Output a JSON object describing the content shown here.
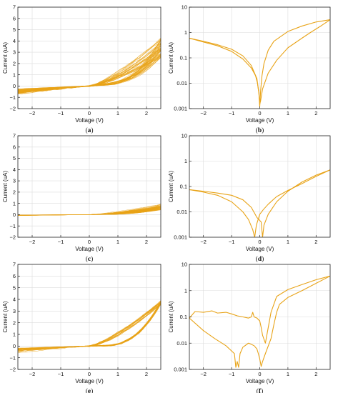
{
  "figure": {
    "series_color": "#E8A317",
    "grid_color": "#dcdcdc"
  },
  "chart_data": [
    {
      "type": "line",
      "panel_label": "(a)",
      "yscale": "linear",
      "xlim": [
        -2.5,
        2.5
      ],
      "ylim": [
        -2,
        7
      ],
      "xticks": [
        -2,
        -1,
        0,
        1,
        2
      ],
      "yticks": [
        -2,
        -1,
        0,
        1,
        2,
        3,
        4,
        5,
        6,
        7
      ],
      "xtick_labels": [
        "−2",
        "−1",
        "0",
        "1",
        "2"
      ],
      "ytick_labels": [
        "−2",
        "−1",
        "0",
        "1",
        "2",
        "3",
        "4",
        "5",
        "6",
        "7"
      ],
      "xlabel": "Voltage (V)",
      "ylabel": "Current (uA)",
      "grid": true,
      "bundle": {
        "count": 28,
        "i_max_range": [
          2.2,
          4.3
        ],
        "low_branch_range": [
          0.3,
          1.0
        ],
        "i_min_range": [
          -0.3,
          -0.8
        ]
      }
    },
    {
      "type": "line",
      "panel_label": "(b)",
      "yscale": "log",
      "xlim": [
        -2.5,
        2.5
      ],
      "ylim": [
        0.001,
        10
      ],
      "xticks": [
        -2,
        -1,
        0,
        1,
        2
      ],
      "yticks": [
        0.001,
        0.01,
        0.1,
        1,
        10
      ],
      "xtick_labels": [
        "−2",
        "−1",
        "0",
        "1",
        "2"
      ],
      "ytick_labels": [
        "0.001",
        "0.01",
        "0.1",
        "1",
        "10"
      ],
      "xlabel": "Voltage (V)",
      "ylabel": "Current (uA)",
      "grid": true,
      "series": [
        {
          "x": [
            -2.5,
            -2.0,
            -1.5,
            -1.0,
            -0.6,
            -0.3,
            -0.15,
            -0.08,
            -0.03,
            0.0,
            0.03,
            0.08,
            0.15,
            0.3,
            0.5,
            1.0,
            1.5,
            2.0,
            2.5
          ],
          "y": [
            0.6,
            0.42,
            0.3,
            0.18,
            0.09,
            0.04,
            0.02,
            0.01,
            0.004,
            0.0012,
            0.005,
            0.02,
            0.06,
            0.2,
            0.45,
            1.1,
            1.8,
            2.6,
            3.2
          ]
        },
        {
          "x": [
            2.5,
            2.2,
            1.8,
            1.5,
            1.0,
            0.6,
            0.3,
            0.1,
            0.03,
            0.0,
            -0.03,
            -0.1,
            -0.3,
            -0.6,
            -1.0,
            -1.5,
            -2.0,
            -2.5
          ],
          "y": [
            3.2,
            1.9,
            1.0,
            0.6,
            0.25,
            0.08,
            0.025,
            0.006,
            0.002,
            0.0015,
            0.004,
            0.015,
            0.05,
            0.12,
            0.22,
            0.33,
            0.45,
            0.6
          ]
        }
      ]
    },
    {
      "type": "line",
      "panel_label": "(c)",
      "yscale": "linear",
      "xlim": [
        -2.5,
        2.5
      ],
      "ylim": [
        -2,
        7
      ],
      "xticks": [
        -2,
        -1,
        0,
        1,
        2
      ],
      "yticks": [
        -2,
        -1,
        0,
        1,
        2,
        3,
        4,
        5,
        6,
        7
      ],
      "xtick_labels": [
        "−2",
        "−1",
        "0",
        "1",
        "2"
      ],
      "ytick_labels": [
        "−2",
        "−1",
        "0",
        "1",
        "2",
        "3",
        "4",
        "5",
        "6",
        "7"
      ],
      "xlabel": "Voltage (V)",
      "ylabel": "Current (uA)",
      "grid": true,
      "bundle": {
        "count": 25,
        "i_max_range": [
          0.3,
          1.0
        ],
        "low_branch_range": [
          0.05,
          0.3
        ],
        "i_min_range": [
          -0.03,
          -0.08
        ]
      }
    },
    {
      "type": "line",
      "panel_label": "(d)",
      "yscale": "log",
      "xlim": [
        -2.5,
        2.5
      ],
      "ylim": [
        0.001,
        10
      ],
      "xticks": [
        -2,
        -1,
        0,
        1,
        2
      ],
      "yticks": [
        0.001,
        0.01,
        0.1,
        1,
        10
      ],
      "xtick_labels": [
        "−2",
        "−1",
        "0",
        "1",
        "2"
      ],
      "ytick_labels": [
        "0.001",
        "0.01",
        "0.1",
        "1",
        "10"
      ],
      "xlabel": "Voltage (V)",
      "ylabel": "Current (uA)",
      "grid": true,
      "series": [
        {
          "x": [
            -2.5,
            -2.0,
            -1.5,
            -1.0,
            -0.6,
            -0.4,
            -0.25,
            -0.18,
            -0.12,
            0.0,
            0.12,
            0.3,
            0.6,
            1.0,
            1.5,
            2.0,
            2.5
          ],
          "y": [
            0.075,
            0.06,
            0.045,
            0.025,
            0.01,
            0.005,
            0.002,
            0.001,
            0.003,
            0.008,
            0.012,
            0.02,
            0.04,
            0.07,
            0.13,
            0.25,
            0.45
          ]
        },
        {
          "x": [
            2.5,
            2.0,
            1.5,
            1.0,
            0.6,
            0.3,
            0.15,
            0.1,
            0.05,
            -0.1,
            -0.3,
            -0.6,
            -1.0,
            -1.5,
            -2.0,
            -2.5
          ],
          "y": [
            0.45,
            0.28,
            0.15,
            0.065,
            0.025,
            0.008,
            0.003,
            0.001,
            0.004,
            0.006,
            0.015,
            0.03,
            0.045,
            0.055,
            0.065,
            0.075
          ]
        }
      ]
    },
    {
      "type": "line",
      "panel_label": "(e)",
      "yscale": "linear",
      "xlim": [
        -2.5,
        2.5
      ],
      "ylim": [
        -2,
        7
      ],
      "xticks": [
        -2,
        -1,
        0,
        1,
        2
      ],
      "yticks": [
        -2,
        -1,
        0,
        1,
        2,
        3,
        4,
        5,
        6,
        7
      ],
      "xtick_labels": [
        "−2",
        "−1",
        "0",
        "1",
        "2"
      ],
      "ytick_labels": [
        "−2",
        "−1",
        "0",
        "1",
        "2",
        "3",
        "4",
        "5",
        "6",
        "7"
      ],
      "xlabel": "Voltage (V)",
      "ylabel": "Current (uA)",
      "grid": true,
      "bundle": {
        "count": 20,
        "i_max_range": [
          3.5,
          3.9
        ],
        "low_branch_range": [
          0.0,
          0.3
        ],
        "i_min_range": [
          -0.2,
          -0.6
        ]
      }
    },
    {
      "type": "line",
      "panel_label": "(f)",
      "yscale": "log",
      "xlim": [
        -2.5,
        2.5
      ],
      "ylim": [
        0.001,
        10
      ],
      "xticks": [
        -2,
        -1,
        0,
        1,
        2
      ],
      "yticks": [
        0.001,
        0.01,
        0.1,
        1,
        10
      ],
      "xtick_labels": [
        "−2",
        "−1",
        "0",
        "1",
        "2"
      ],
      "ytick_labels": [
        "0.001",
        "0.01",
        "0.1",
        "1",
        "10"
      ],
      "xlabel": "Voltage (V)",
      "ylabel": "Current (uA)",
      "grid": true,
      "series": [
        {
          "x": [
            -2.5,
            -2.3,
            -2.0,
            -1.7,
            -1.5,
            -1.2,
            -1.0,
            -0.8,
            -0.6,
            -0.4,
            -0.3,
            -0.25,
            -0.2,
            -0.1,
            0.0,
            0.05,
            0.1,
            0.2,
            0.4,
            0.6,
            1.0,
            1.5,
            2.0,
            2.5
          ],
          "y": [
            0.09,
            0.16,
            0.15,
            0.17,
            0.14,
            0.15,
            0.13,
            0.11,
            0.1,
            0.09,
            0.1,
            0.15,
            0.1,
            0.09,
            0.07,
            0.04,
            0.02,
            0.01,
            0.15,
            0.6,
            1.1,
            1.7,
            2.6,
            3.6
          ]
        },
        {
          "x": [
            2.5,
            2.0,
            1.5,
            1.0,
            0.7,
            0.6,
            0.5,
            0.4,
            0.2,
            0.1,
            0.05,
            0.0,
            -0.05,
            -0.1,
            -0.2,
            -0.3,
            -0.4,
            -0.6,
            -0.7,
            -0.75,
            -0.8,
            -0.85,
            -0.9,
            -1.2,
            -1.6,
            -2.0,
            -2.5
          ],
          "y": [
            3.6,
            1.9,
            1.0,
            0.55,
            0.3,
            0.15,
            0.05,
            0.015,
            0.004,
            0.002,
            0.0013,
            0.0025,
            0.004,
            0.006,
            0.008,
            0.009,
            0.01,
            0.007,
            0.004,
            0.0012,
            0.002,
            0.0012,
            0.004,
            0.008,
            0.015,
            0.03,
            0.09
          ]
        }
      ]
    }
  ]
}
